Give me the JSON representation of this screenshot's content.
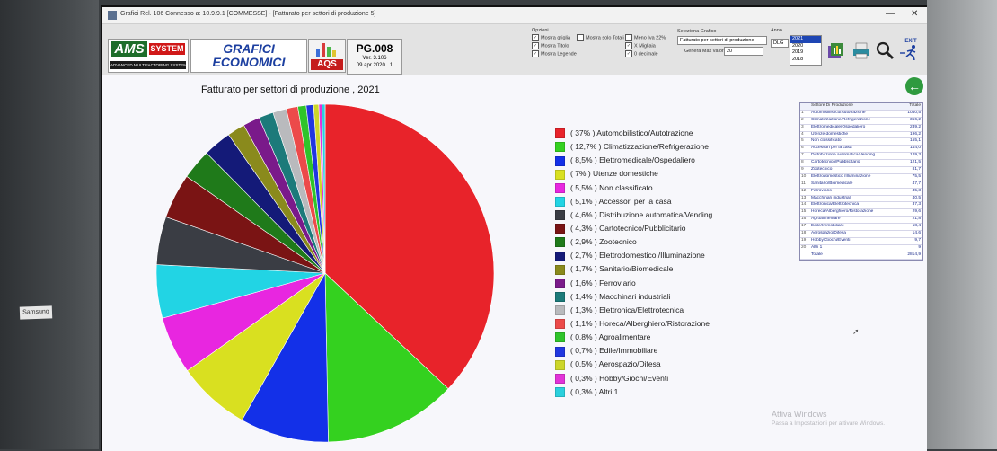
{
  "window": {
    "title": "Grafici Rel. 106 Connesso a: 10.9.9.1 [COMMESSE] - [Fatturato per settori di produzione 5]",
    "minimize": "—",
    "close": "✕"
  },
  "header": {
    "logo_ams": "AMS",
    "logo_system": "SYSTEM",
    "logo_tagline": "ADVANCED MULTIFACTORING SYSTEM",
    "app_title_line1": "GRAFICI",
    "app_title_line2": "ECONOMICI",
    "logo_aqs": "AQS",
    "page_code": "PG.008",
    "version": "Ver. 3.106",
    "date": "09 apr 2020",
    "page_num": "1"
  },
  "options": {
    "group_label": "Opzioni",
    "show_grid": "Mostra griglia",
    "show_title": "Mostra Titolo",
    "show_legend": "Mostra Legende",
    "show_totals": "Mostra solo Totali",
    "minus_vat": "Meno Iva 22%",
    "x_thousands": "X Migliaia",
    "decimal": "0 decimale",
    "select_chart_label": "Seleziona Grafico",
    "chart_selected": "Fatturato per settori di produzione",
    "max_values_label": "Genera Max valori",
    "max_values": "20",
    "year_label": "Anno",
    "year_button": "DLG",
    "years": [
      "2021",
      "2020",
      "2019",
      "2018"
    ],
    "exit_label": "EXIT"
  },
  "chart_data": {
    "type": "pie",
    "title": "Fatturato per settori di produzione , 2021",
    "slices": [
      {
        "label": "( 37% ) Automobilistico/Autotrazione",
        "value": 37,
        "color": "#e8232a"
      },
      {
        "label": "( 12,7% ) Climatizzazione/Refrigerazione",
        "value": 12.7,
        "color": "#34d11f"
      },
      {
        "label": "( 8,5% ) Elettromedicale/Ospedaliero",
        "value": 8.5,
        "color": "#1330e8"
      },
      {
        "label": "( 7% ) Utenze domestiche",
        "value": 7,
        "color": "#d9e020"
      },
      {
        "label": "( 5,5% ) Non classificato",
        "value": 5.5,
        "color": "#e826e0"
      },
      {
        "label": "( 5,1% ) Accessori per la casa",
        "value": 5.1,
        "color": "#22d4e4"
      },
      {
        "label": "( 4,6% ) Distribuzione automatica/Vending",
        "value": 4.6,
        "color": "#3a3d44"
      },
      {
        "label": "( 4,3% ) Cartotecnico/Pubblicitario",
        "value": 4.3,
        "color": "#7a1414"
      },
      {
        "label": "( 2,9% ) Zootecnico",
        "value": 2.9,
        "color": "#1f7a1a"
      },
      {
        "label": "( 2,7% ) Elettrodomestico /Illuminazione",
        "value": 2.7,
        "color": "#141a78"
      },
      {
        "label": "( 1,7% ) Sanitario/Biomedicale",
        "value": 1.7,
        "color": "#8a8a1c"
      },
      {
        "label": "( 1,6% ) Ferroviario",
        "value": 1.6,
        "color": "#7a1a8a"
      },
      {
        "label": "( 1,4% ) Macchinari industriali",
        "value": 1.4,
        "color": "#1c7a7a"
      },
      {
        "label": "( 1,3% ) Elettronica/Elettrotecnica",
        "value": 1.3,
        "color": "#b9babd"
      },
      {
        "label": "( 1,1% ) Horeca/Alberghiero/Ristorazione",
        "value": 1.1,
        "color": "#ec4a4a"
      },
      {
        "label": "( 0,8% ) Agroalimentare",
        "value": 0.8,
        "color": "#2fc42a"
      },
      {
        "label": "( 0,7% ) Edile/Immobiliare",
        "value": 0.7,
        "color": "#2137e0"
      },
      {
        "label": "( 0,5% ) Aerospazio/Difesa",
        "value": 0.5,
        "color": "#cdd62a"
      },
      {
        "label": "( 0,3% ) Hobby/Giochi/Eventi",
        "value": 0.3,
        "color": "#e232d8"
      },
      {
        "label": "( 0,3% ) Altri 1",
        "value": 0.3,
        "color": "#2bd0dd"
      }
    ]
  },
  "table": {
    "header_sector": "Settore Di Produzione",
    "header_total": "Totale",
    "rows": [
      {
        "n": "1",
        "sector": "Automobilistico/Autotrazione",
        "total": "1040,5"
      },
      {
        "n": "2",
        "sector": "Climatizzazione/Refrigerazione",
        "total": "356,2"
      },
      {
        "n": "3",
        "sector": "Elettromedicale/Ospedaliero",
        "total": "239,2"
      },
      {
        "n": "4",
        "sector": "Utenze domestiche",
        "total": "196,2"
      },
      {
        "n": "5",
        "sector": "Non classificato",
        "total": "155,1"
      },
      {
        "n": "6",
        "sector": "Accessori per la casa",
        "total": "144,0"
      },
      {
        "n": "7",
        "sector": "Distribuzione automatica/Vending",
        "total": "129,3"
      },
      {
        "n": "8",
        "sector": "Cartotecnico/Pubblicitario",
        "total": "121,5"
      },
      {
        "n": "9",
        "sector": "Zootecnico",
        "total": "81,7"
      },
      {
        "n": "10",
        "sector": "Elettrodomestico /Illuminazione",
        "total": "75,5"
      },
      {
        "n": "11",
        "sector": "Sanitario/Biomedicale",
        "total": "47,7"
      },
      {
        "n": "12",
        "sector": "Ferroviario",
        "total": "45,3"
      },
      {
        "n": "13",
        "sector": "Macchinari industriali",
        "total": "40,5"
      },
      {
        "n": "14",
        "sector": "Elettronica/Elettrotecnica",
        "total": "37,3"
      },
      {
        "n": "15",
        "sector": "Horeca/Alberghiero/Ristorazione",
        "total": "29,6"
      },
      {
        "n": "16",
        "sector": "Agroalimentare",
        "total": "21,8"
      },
      {
        "n": "17",
        "sector": "Edile/Immobiliare",
        "total": "18,4"
      },
      {
        "n": "18",
        "sector": "Aerospazio/Difesa",
        "total": "14,6"
      },
      {
        "n": "19",
        "sector": "Hobby/Giochi/Eventi",
        "total": "9,7"
      },
      {
        "n": "20",
        "sector": "Altri 1",
        "total": "9"
      },
      {
        "n": "",
        "sector": "Totale",
        "total": "2814,9"
      }
    ]
  },
  "watermark": {
    "line1": "Attiva Windows",
    "line2": "Passa a Impostazioni per attivare Windows."
  },
  "sticker": "Samsung"
}
